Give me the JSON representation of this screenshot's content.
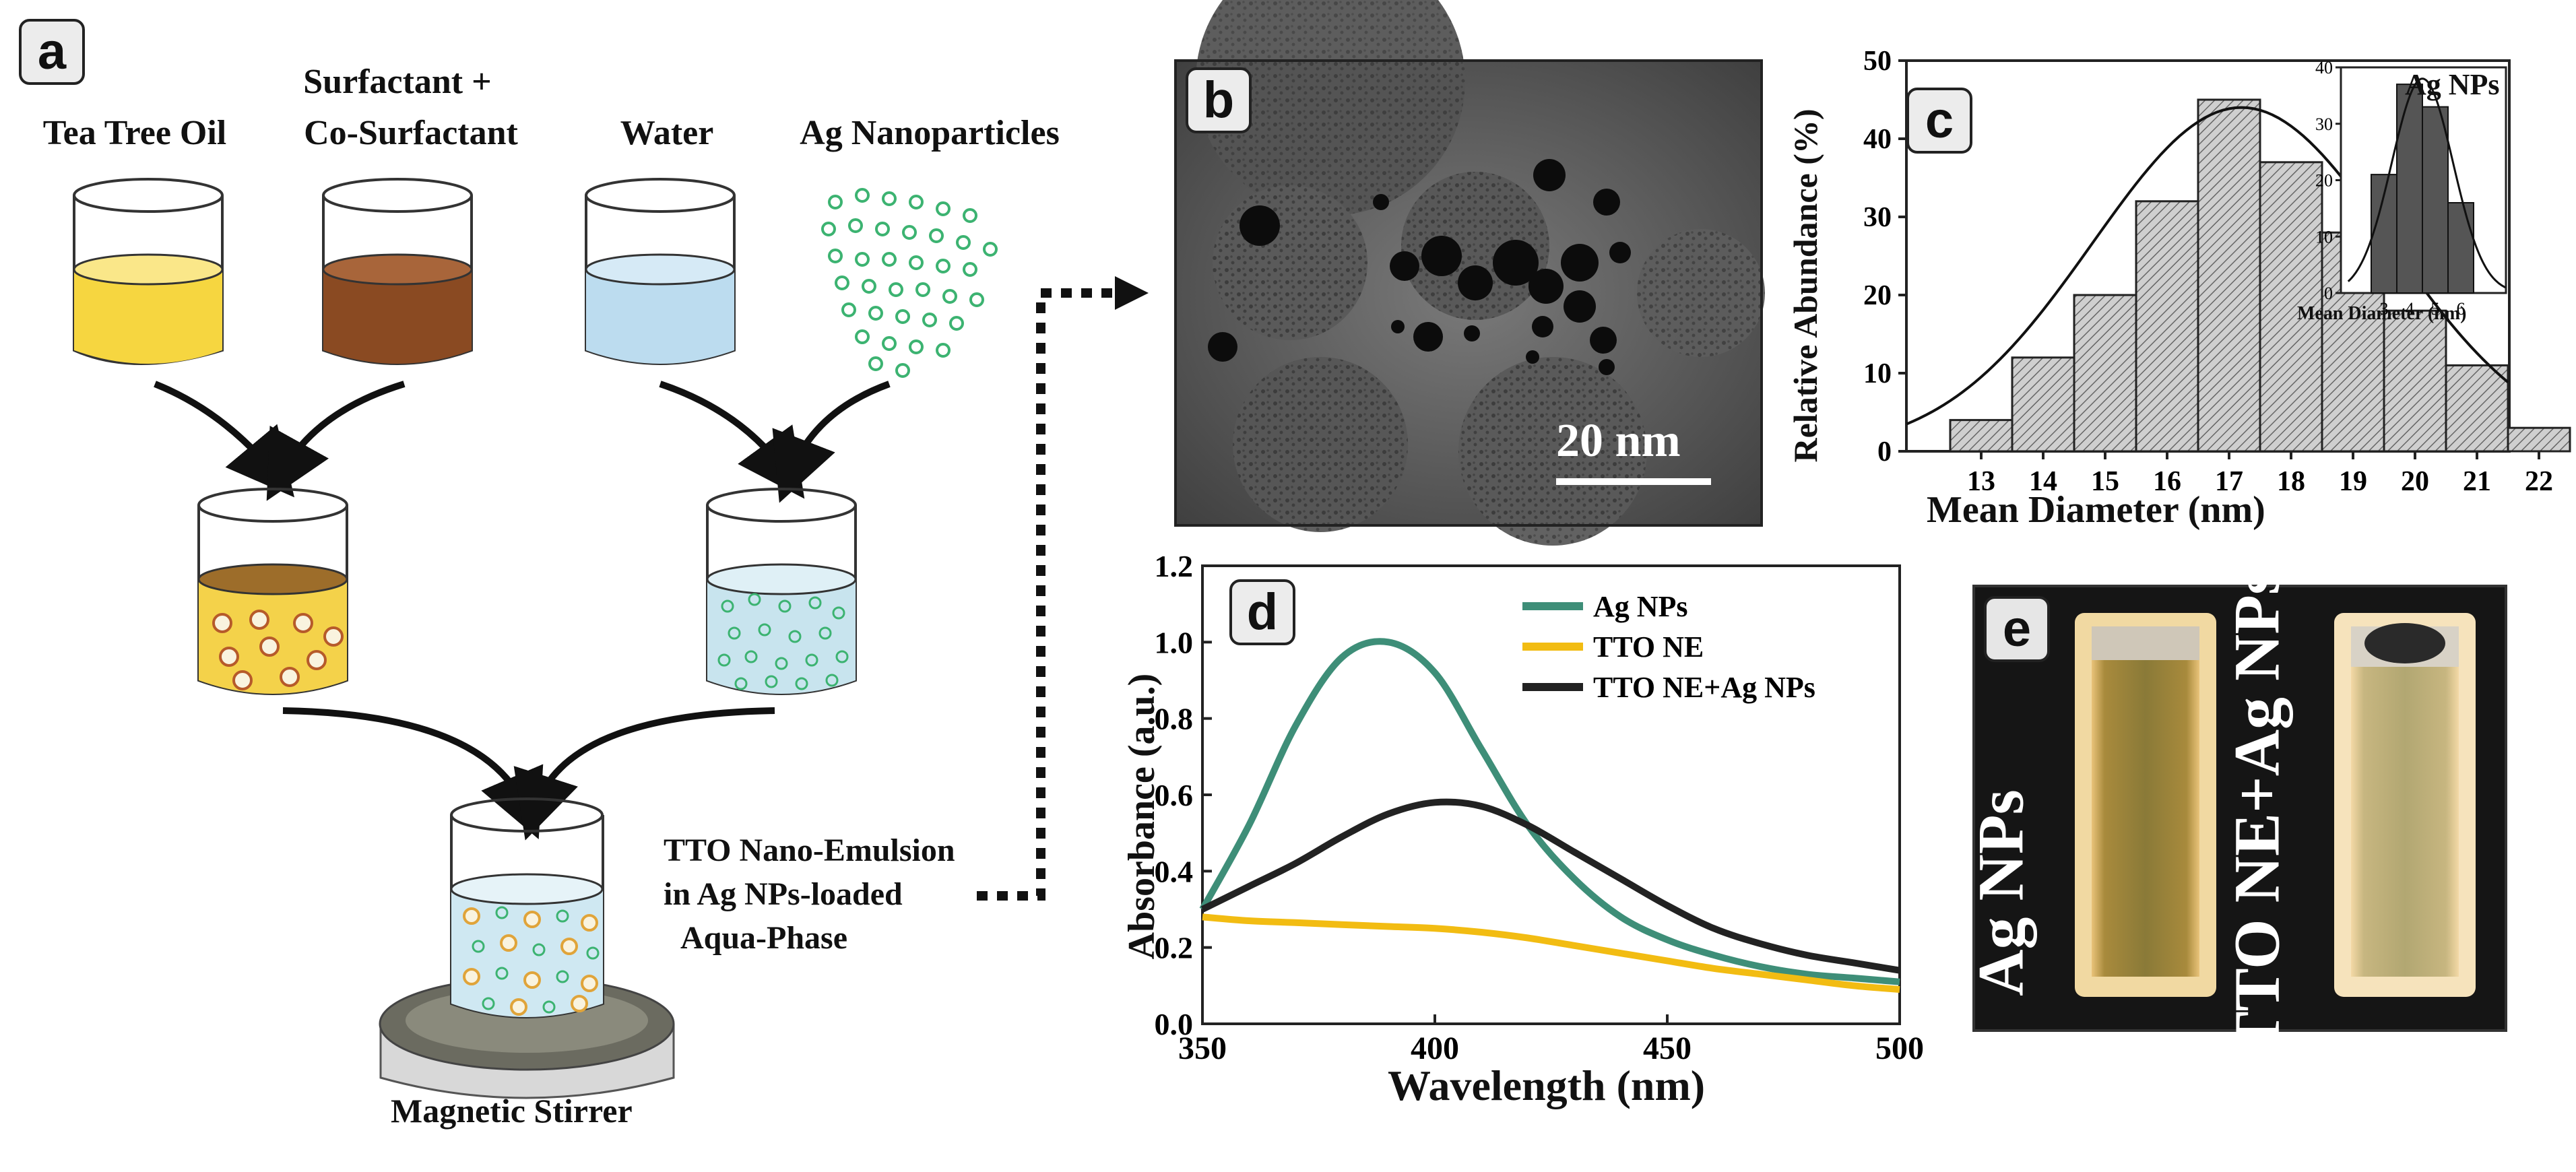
{
  "panels": {
    "a": {
      "letter": "a",
      "labels": {
        "tea_tree_oil": "Tea Tree Oil",
        "surfactant_line1": "Surfactant +",
        "surfactant_line2": "Co-Surfactant",
        "water": "Water",
        "ag_nanoparticles": "Ag Nanoparticles",
        "emulsion_line1": "TTO Nano-Emulsion",
        "emulsion_line2": "in Ag NPs-loaded",
        "emulsion_line3": "Aqua-Phase",
        "magnetic_stirrer": "Magnetic Stirrer"
      },
      "colors": {
        "oil": "#f6d640",
        "surfactant": "#8a4a22",
        "water": "#bcdcef",
        "ag_particle": "#3cb371"
      }
    },
    "b": {
      "letter": "b",
      "scale_bar": "20 nm"
    },
    "c": {
      "letter": "c",
      "chart_data": [
        {
          "type": "bar",
          "title": "",
          "xlabel": "Mean Diameter (nm)",
          "ylabel": "Relative Abundance (%)",
          "categories": [
            "13",
            "14",
            "15",
            "16",
            "17",
            "18",
            "19",
            "20",
            "21",
            "22"
          ],
          "values": [
            4,
            12,
            20,
            32,
            45,
            37,
            28,
            18,
            11,
            3
          ],
          "ylim": [
            0,
            50
          ],
          "yticks": [
            0,
            10,
            20,
            30,
            40,
            50
          ],
          "fit_curve": "gaussian"
        },
        {
          "type": "bar",
          "title": "Ag NPs",
          "xlabel": "Mean Diameter (nm)",
          "ylabel": "",
          "categories": [
            "3",
            "4",
            "5",
            "6"
          ],
          "values": [
            21,
            37,
            33,
            16
          ],
          "ylim": [
            0,
            40
          ],
          "yticks": [
            0,
            10,
            20,
            30,
            40
          ],
          "fit_curve": "gaussian"
        }
      ]
    },
    "d": {
      "letter": "d",
      "chart_data": {
        "type": "line",
        "xlabel": "Wavelength (nm)",
        "ylabel": "Absorbance (a.u.)",
        "xlim": [
          350,
          500
        ],
        "ylim": [
          0,
          1.2
        ],
        "xticks": [
          350,
          400,
          450,
          500
        ],
        "yticks": [
          "0.0",
          "0.2",
          "0.4",
          "0.6",
          "0.8",
          "1.0",
          "1.2"
        ],
        "x": [
          350,
          360,
          370,
          380,
          390,
          400,
          410,
          420,
          430,
          440,
          450,
          460,
          470,
          480,
          490,
          500
        ],
        "series": [
          {
            "name": "Ag NPs",
            "color": "#3e8e78",
            "values": [
              0.3,
              0.52,
              0.78,
              0.96,
              1.0,
              0.92,
              0.72,
              0.52,
              0.38,
              0.28,
              0.22,
              0.18,
              0.15,
              0.13,
              0.12,
              0.11
            ]
          },
          {
            "name": "TTO NE",
            "color": "#f2bc12",
            "values": [
              0.28,
              0.27,
              0.265,
              0.26,
              0.255,
              0.25,
              0.24,
              0.225,
              0.205,
              0.185,
              0.165,
              0.145,
              0.13,
              0.115,
              0.1,
              0.09
            ]
          },
          {
            "name": "TTO NE+Ag NPs",
            "color": "#222222",
            "values": [
              0.3,
              0.36,
              0.42,
              0.49,
              0.55,
              0.58,
              0.57,
              0.52,
              0.45,
              0.38,
              0.31,
              0.25,
              0.21,
              0.18,
              0.16,
              0.14
            ]
          }
        ]
      }
    },
    "e": {
      "letter": "e",
      "label_left": "Ag NPs",
      "label_right": "TTO NE+Ag NPs"
    }
  }
}
